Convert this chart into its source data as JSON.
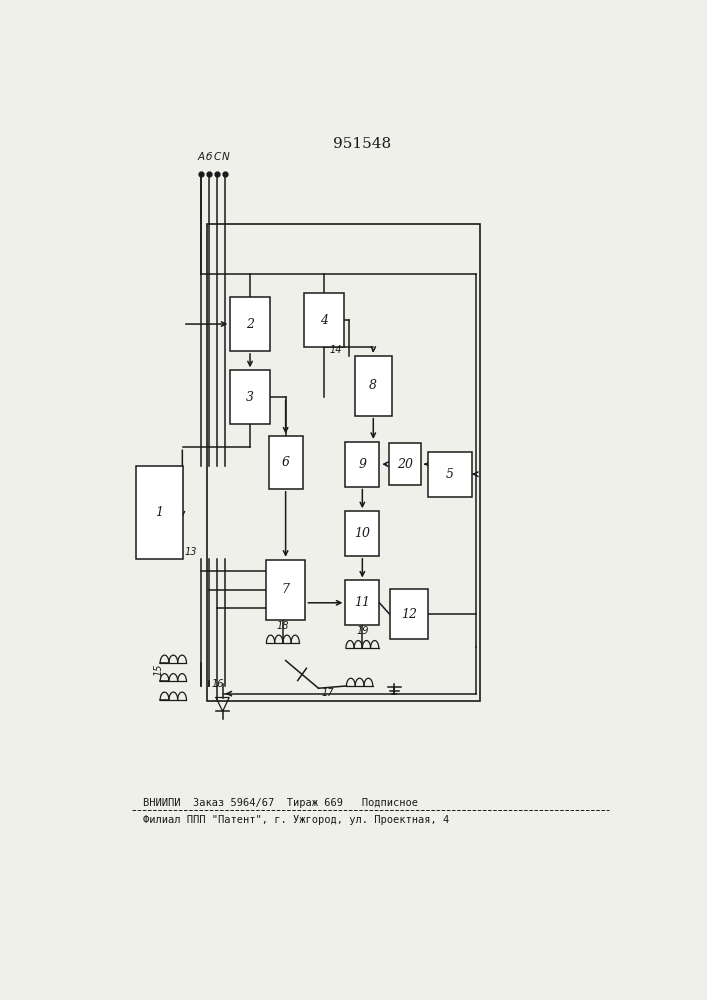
{
  "title": "951548",
  "bg_color": "#f0f0eb",
  "line_color": "#1a1a1a",
  "footer_line1": "ВНИИПИ  Заказ 5964/67  Тираж 669   Подписное",
  "footer_line2": "Филиал ППП \"Патент\", г. Ужгород, ул. Проектная, 4",
  "boxes": {
    "1": [
      0.13,
      0.49,
      0.085,
      0.12
    ],
    "2": [
      0.295,
      0.735,
      0.072,
      0.07
    ],
    "3": [
      0.295,
      0.64,
      0.072,
      0.07
    ],
    "4": [
      0.43,
      0.74,
      0.072,
      0.07
    ],
    "5": [
      0.66,
      0.54,
      0.08,
      0.058
    ],
    "6": [
      0.36,
      0.555,
      0.062,
      0.068
    ],
    "7": [
      0.36,
      0.39,
      0.072,
      0.078
    ],
    "8": [
      0.52,
      0.655,
      0.068,
      0.078
    ],
    "9": [
      0.5,
      0.553,
      0.062,
      0.058
    ],
    "10": [
      0.5,
      0.463,
      0.062,
      0.058
    ],
    "11": [
      0.5,
      0.373,
      0.062,
      0.058
    ],
    "12": [
      0.585,
      0.358,
      0.07,
      0.065
    ],
    "20": [
      0.578,
      0.553,
      0.058,
      0.055
    ]
  }
}
